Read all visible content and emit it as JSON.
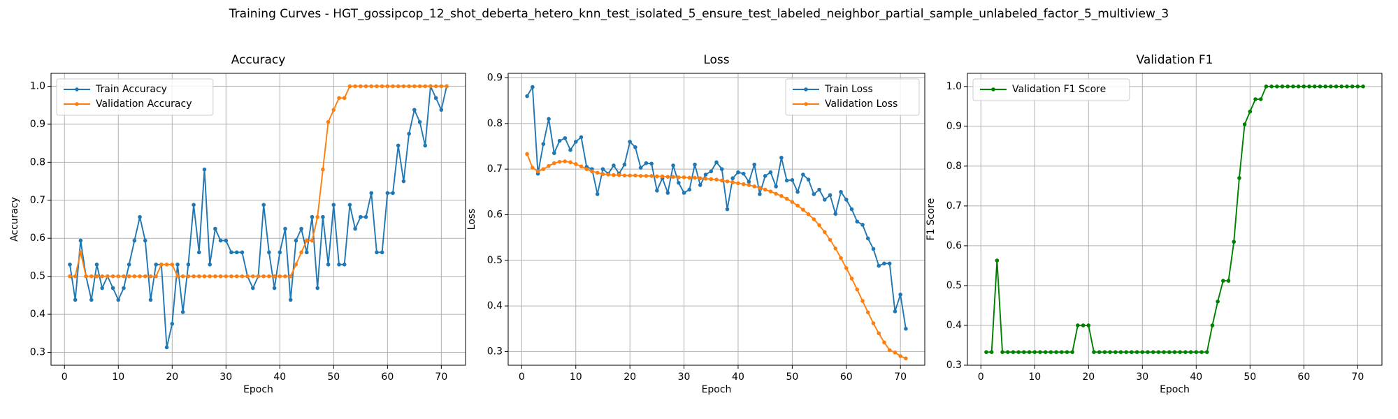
{
  "title": "Training Curves - HGT_gossipcop_12_shot_deberta_hetero_knn_test_isolated_5_ensure_test_labeled_neighbor_partial_sample_unlabeled_factor_5_multiview_3",
  "chart_data": [
    {
      "type": "line",
      "title": "Accuracy",
      "xlabel": "Epoch",
      "ylabel": "Accuracy",
      "legend": "upper left",
      "grid": true,
      "x": [
        1,
        2,
        3,
        4,
        5,
        6,
        7,
        8,
        9,
        10,
        11,
        12,
        13,
        14,
        15,
        16,
        17,
        18,
        19,
        20,
        21,
        22,
        23,
        24,
        25,
        26,
        27,
        28,
        29,
        30,
        31,
        32,
        33,
        34,
        35,
        36,
        37,
        38,
        39,
        40,
        41,
        42,
        43,
        44,
        45,
        46,
        47,
        48,
        49,
        50,
        51,
        52,
        53,
        54,
        55,
        56,
        57,
        58,
        59,
        60,
        61,
        62,
        63,
        64,
        65,
        66,
        67,
        68,
        69,
        70,
        71
      ],
      "xlim": [
        -2.5,
        74.5
      ],
      "xticks": [
        0,
        10,
        20,
        30,
        40,
        50,
        60,
        70
      ],
      "ylim": [
        0.266,
        1.034
      ],
      "yticks": [
        0.3,
        0.4,
        0.5,
        0.6,
        0.7,
        0.8,
        0.9,
        {
          "value": 1,
          "label": "1.0"
        }
      ],
      "series": [
        {
          "name": "Train Accuracy",
          "color": "#1f77b4",
          "values": [
            0.531,
            0.438,
            0.594,
            0.5,
            0.438,
            0.531,
            0.469,
            0.5,
            0.469,
            0.438,
            0.469,
            0.531,
            0.594,
            0.656,
            0.594,
            0.438,
            0.531,
            0.531,
            0.313,
            0.375,
            0.531,
            0.406,
            0.531,
            0.688,
            0.563,
            0.781,
            0.531,
            0.625,
            0.594,
            0.594,
            0.563,
            0.563,
            0.563,
            0.5,
            0.469,
            0.5,
            0.688,
            0.563,
            0.469,
            0.563,
            0.625,
            0.438,
            0.594,
            0.625,
            0.563,
            0.656,
            0.469,
            0.656,
            0.531,
            0.688,
            0.531,
            0.531,
            0.688,
            0.625,
            0.656,
            0.656,
            0.719,
            0.563,
            0.563,
            0.719,
            0.719,
            0.844,
            0.75,
            0.875,
            0.938,
            0.906,
            0.844,
            1.0,
            0.969,
            0.938,
            1.0
          ]
        },
        {
          "name": "Validation Accuracy",
          "color": "#ff7f0e",
          "values": [
            0.5,
            0.5,
            0.563,
            0.5,
            0.5,
            0.5,
            0.5,
            0.5,
            0.5,
            0.5,
            0.5,
            0.5,
            0.5,
            0.5,
            0.5,
            0.5,
            0.5,
            0.531,
            0.531,
            0.531,
            0.5,
            0.5,
            0.5,
            0.5,
            0.5,
            0.5,
            0.5,
            0.5,
            0.5,
            0.5,
            0.5,
            0.5,
            0.5,
            0.5,
            0.5,
            0.5,
            0.5,
            0.5,
            0.5,
            0.5,
            0.5,
            0.5,
            0.531,
            0.563,
            0.594,
            0.594,
            0.656,
            0.781,
            0.906,
            0.938,
            0.969,
            0.969,
            1.0,
            1.0,
            1.0,
            1.0,
            1.0,
            1.0,
            1.0,
            1.0,
            1.0,
            1.0,
            1.0,
            1.0,
            1.0,
            1.0,
            1.0,
            1.0,
            1.0,
            1.0,
            1.0
          ]
        }
      ]
    },
    {
      "type": "line",
      "title": "Loss",
      "xlabel": "Epoch",
      "ylabel": "Loss",
      "legend": "upper right",
      "grid": true,
      "x": [
        1,
        2,
        3,
        4,
        5,
        6,
        7,
        8,
        9,
        10,
        11,
        12,
        13,
        14,
        15,
        16,
        17,
        18,
        19,
        20,
        21,
        22,
        23,
        24,
        25,
        26,
        27,
        28,
        29,
        30,
        31,
        32,
        33,
        34,
        35,
        36,
        37,
        38,
        39,
        40,
        41,
        42,
        43,
        44,
        45,
        46,
        47,
        48,
        49,
        50,
        51,
        52,
        53,
        54,
        55,
        56,
        57,
        58,
        59,
        60,
        61,
        62,
        63,
        64,
        65,
        66,
        67,
        68,
        69,
        70,
        71
      ],
      "xlim": [
        -2.5,
        74.5
      ],
      "xticks": [
        0,
        10,
        20,
        30,
        40,
        50,
        60,
        70
      ],
      "ylim": [
        0.27,
        0.91
      ],
      "yticks": [
        0.3,
        0.4,
        0.5,
        0.6,
        0.7,
        0.8,
        0.9
      ],
      "series": [
        {
          "name": "Train Loss",
          "color": "#1f77b4",
          "values": [
            0.86,
            0.88,
            0.69,
            0.755,
            0.81,
            0.735,
            0.762,
            0.768,
            0.742,
            0.76,
            0.77,
            0.705,
            0.7,
            0.645,
            0.7,
            0.69,
            0.708,
            0.69,
            0.71,
            0.76,
            0.748,
            0.703,
            0.713,
            0.712,
            0.653,
            0.68,
            0.648,
            0.708,
            0.67,
            0.648,
            0.655,
            0.71,
            0.665,
            0.688,
            0.695,
            0.715,
            0.7,
            0.612,
            0.68,
            0.693,
            0.69,
            0.672,
            0.71,
            0.645,
            0.685,
            0.693,
            0.662,
            0.725,
            0.675,
            0.676,
            0.65,
            0.688,
            0.677,
            0.645,
            0.655,
            0.633,
            0.643,
            0.602,
            0.65,
            0.633,
            0.612,
            0.585,
            0.578,
            0.548,
            0.525,
            0.488,
            0.493,
            0.493,
            0.388,
            0.425,
            0.35
          ]
        },
        {
          "name": "Validation Loss",
          "color": "#ff7f0e",
          "values": [
            0.733,
            0.703,
            0.695,
            0.7,
            0.707,
            0.713,
            0.716,
            0.717,
            0.715,
            0.711,
            0.706,
            0.7,
            0.695,
            0.692,
            0.689,
            0.688,
            0.687,
            0.687,
            0.686,
            0.686,
            0.686,
            0.685,
            0.685,
            0.685,
            0.684,
            0.684,
            0.683,
            0.683,
            0.682,
            0.682,
            0.681,
            0.681,
            0.68,
            0.679,
            0.678,
            0.677,
            0.675,
            0.673,
            0.671,
            0.669,
            0.667,
            0.665,
            0.662,
            0.659,
            0.655,
            0.651,
            0.646,
            0.641,
            0.635,
            0.628,
            0.62,
            0.611,
            0.601,
            0.59,
            0.577,
            0.562,
            0.545,
            0.526,
            0.505,
            0.483,
            0.46,
            0.436,
            0.411,
            0.386,
            0.362,
            0.34,
            0.32,
            0.303,
            0.298,
            0.29,
            0.285
          ]
        }
      ]
    },
    {
      "type": "line",
      "title": "Validation F1",
      "xlabel": "Epoch",
      "ylabel": "F1 Score",
      "legend": "upper left",
      "grid": true,
      "x": [
        1,
        2,
        3,
        4,
        5,
        6,
        7,
        8,
        9,
        10,
        11,
        12,
        13,
        14,
        15,
        16,
        17,
        18,
        19,
        20,
        21,
        22,
        23,
        24,
        25,
        26,
        27,
        28,
        29,
        30,
        31,
        32,
        33,
        34,
        35,
        36,
        37,
        38,
        39,
        40,
        41,
        42,
        43,
        44,
        45,
        46,
        47,
        48,
        49,
        50,
        51,
        52,
        53,
        54,
        55,
        56,
        57,
        58,
        59,
        60,
        61,
        62,
        63,
        64,
        65,
        66,
        67,
        68,
        69,
        70,
        71
      ],
      "xlim": [
        -2.5,
        74.5
      ],
      "xticks": [
        0,
        10,
        20,
        30,
        40,
        50,
        60,
        70
      ],
      "ylim": [
        0.3,
        1.033
      ],
      "yticks": [
        0.3,
        0.4,
        0.5,
        0.6,
        0.7,
        0.8,
        0.9,
        {
          "value": 1,
          "label": "1.0"
        }
      ],
      "series": [
        {
          "name": "Validation F1 Score",
          "color": "#008000",
          "values": [
            0.333,
            0.333,
            0.563,
            0.333,
            0.333,
            0.333,
            0.333,
            0.333,
            0.333,
            0.333,
            0.333,
            0.333,
            0.333,
            0.333,
            0.333,
            0.333,
            0.333,
            0.4,
            0.4,
            0.4,
            0.333,
            0.333,
            0.333,
            0.333,
            0.333,
            0.333,
            0.333,
            0.333,
            0.333,
            0.333,
            0.333,
            0.333,
            0.333,
            0.333,
            0.333,
            0.333,
            0.333,
            0.333,
            0.333,
            0.333,
            0.333,
            0.333,
            0.4,
            0.46,
            0.512,
            0.512,
            0.61,
            0.77,
            0.905,
            0.937,
            0.968,
            0.968,
            1.0,
            1.0,
            1.0,
            1.0,
            1.0,
            1.0,
            1.0,
            1.0,
            1.0,
            1.0,
            1.0,
            1.0,
            1.0,
            1.0,
            1.0,
            1.0,
            1.0,
            1.0,
            1.0
          ]
        }
      ]
    }
  ]
}
